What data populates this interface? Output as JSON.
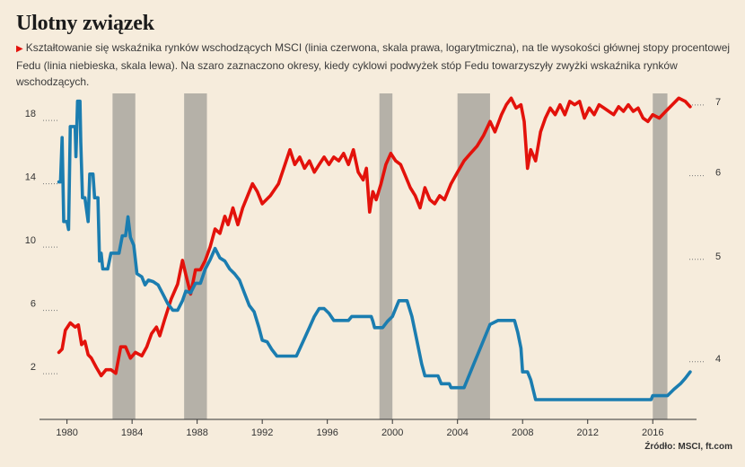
{
  "title": "Ulotny związek",
  "subtitle": "Kształtowanie się wskaźnika rynków wschodzących MSCI (linia czerwona,  skala prawa, logarytmiczna), na tle wysokości głównej stopy procentowej Fedu (linia niebieska, skala lewa). Na szaro zaznaczono okresy, kiedy cyklowi podwyżek stóp Fedu towarzyszyły zwyżki wskaźnika rynków wschodzących.",
  "source": "Źródło: MSCI, ft.com",
  "colors": {
    "background": "#f6ecdc",
    "msci": "#e3120b",
    "fed": "#1b7db0",
    "shading": "#b5b1a8"
  },
  "chart_data": {
    "type": "line",
    "title": "Ulotny związek",
    "x_ticks": [
      1980,
      1984,
      1988,
      1992,
      1996,
      2000,
      2004,
      2008,
      2012,
      2016
    ],
    "x_range": [
      1978.2,
      2018.8
    ],
    "left_axis": {
      "ticks": [
        2,
        6,
        10,
        14,
        18
      ],
      "range": [
        -1,
        20.5
      ]
    },
    "right_axis": {
      "ticks": [
        4,
        5,
        6,
        7
      ],
      "range": [
        3.5,
        7.35
      ],
      "scale": "log"
    },
    "shaded_periods": [
      [
        1982.8,
        1984.2
      ],
      [
        1987.2,
        1988.6
      ],
      [
        1999.2,
        2000.0
      ],
      [
        2004.0,
        2006.0
      ],
      [
        2016.0,
        2016.9
      ]
    ],
    "series": [
      {
        "axis": "right",
        "color": "#e3120b",
        "points": [
          [
            1979.5,
            4.05
          ],
          [
            1979.7,
            4.08
          ],
          [
            1979.9,
            4.25
          ],
          [
            1980.2,
            4.32
          ],
          [
            1980.5,
            4.28
          ],
          [
            1980.7,
            4.3
          ],
          [
            1980.9,
            4.12
          ],
          [
            1981.1,
            4.15
          ],
          [
            1981.3,
            4.03
          ],
          [
            1981.5,
            4.0
          ],
          [
            1981.8,
            3.92
          ],
          [
            1982.1,
            3.85
          ],
          [
            1982.4,
            3.9
          ],
          [
            1982.7,
            3.9
          ],
          [
            1983.0,
            3.87
          ],
          [
            1983.3,
            4.1
          ],
          [
            1983.6,
            4.1
          ],
          [
            1983.9,
            4.0
          ],
          [
            1984.2,
            4.05
          ],
          [
            1984.6,
            4.02
          ],
          [
            1984.9,
            4.1
          ],
          [
            1985.2,
            4.22
          ],
          [
            1985.5,
            4.28
          ],
          [
            1985.7,
            4.2
          ],
          [
            1986.0,
            4.35
          ],
          [
            1986.4,
            4.55
          ],
          [
            1986.8,
            4.7
          ],
          [
            1987.1,
            4.95
          ],
          [
            1987.3,
            4.8
          ],
          [
            1987.6,
            4.6
          ],
          [
            1987.9,
            4.85
          ],
          [
            1988.2,
            4.85
          ],
          [
            1988.5,
            4.95
          ],
          [
            1988.8,
            5.1
          ],
          [
            1989.1,
            5.3
          ],
          [
            1989.4,
            5.25
          ],
          [
            1989.7,
            5.45
          ],
          [
            1989.9,
            5.35
          ],
          [
            1990.2,
            5.55
          ],
          [
            1990.5,
            5.35
          ],
          [
            1990.8,
            5.55
          ],
          [
            1991.1,
            5.7
          ],
          [
            1991.4,
            5.85
          ],
          [
            1991.7,
            5.75
          ],
          [
            1992.0,
            5.6
          ],
          [
            1992.5,
            5.7
          ],
          [
            1993.0,
            5.85
          ],
          [
            1993.4,
            6.1
          ],
          [
            1993.7,
            6.3
          ],
          [
            1994.0,
            6.1
          ],
          [
            1994.3,
            6.2
          ],
          [
            1994.6,
            6.05
          ],
          [
            1994.9,
            6.15
          ],
          [
            1995.2,
            6.0
          ],
          [
            1995.5,
            6.1
          ],
          [
            1995.8,
            6.2
          ],
          [
            1996.1,
            6.1
          ],
          [
            1996.4,
            6.2
          ],
          [
            1996.7,
            6.15
          ],
          [
            1997.0,
            6.25
          ],
          [
            1997.3,
            6.1
          ],
          [
            1997.6,
            6.3
          ],
          [
            1997.9,
            6.0
          ],
          [
            1998.2,
            5.9
          ],
          [
            1998.4,
            6.05
          ],
          [
            1998.6,
            5.5
          ],
          [
            1998.8,
            5.75
          ],
          [
            1999.0,
            5.65
          ],
          [
            1999.3,
            5.85
          ],
          [
            1999.6,
            6.1
          ],
          [
            1999.9,
            6.25
          ],
          [
            2000.2,
            6.15
          ],
          [
            2000.5,
            6.1
          ],
          [
            2000.8,
            5.95
          ],
          [
            2001.1,
            5.8
          ],
          [
            2001.4,
            5.7
          ],
          [
            2001.7,
            5.55
          ],
          [
            2002.0,
            5.8
          ],
          [
            2002.3,
            5.65
          ],
          [
            2002.6,
            5.6
          ],
          [
            2002.9,
            5.7
          ],
          [
            2003.2,
            5.65
          ],
          [
            2003.6,
            5.85
          ],
          [
            2004.0,
            6.0
          ],
          [
            2004.4,
            6.15
          ],
          [
            2004.8,
            6.25
          ],
          [
            2005.2,
            6.35
          ],
          [
            2005.6,
            6.5
          ],
          [
            2006.0,
            6.7
          ],
          [
            2006.3,
            6.55
          ],
          [
            2006.7,
            6.8
          ],
          [
            2007.0,
            6.95
          ],
          [
            2007.3,
            7.05
          ],
          [
            2007.6,
            6.9
          ],
          [
            2007.9,
            6.95
          ],
          [
            2008.1,
            6.7
          ],
          [
            2008.3,
            6.05
          ],
          [
            2008.5,
            6.3
          ],
          [
            2008.8,
            6.15
          ],
          [
            2009.1,
            6.55
          ],
          [
            2009.4,
            6.75
          ],
          [
            2009.7,
            6.9
          ],
          [
            2010.0,
            6.8
          ],
          [
            2010.3,
            6.95
          ],
          [
            2010.6,
            6.8
          ],
          [
            2010.9,
            7.0
          ],
          [
            2011.2,
            6.95
          ],
          [
            2011.5,
            7.0
          ],
          [
            2011.8,
            6.75
          ],
          [
            2012.1,
            6.9
          ],
          [
            2012.4,
            6.8
          ],
          [
            2012.7,
            6.95
          ],
          [
            2013.0,
            6.9
          ],
          [
            2013.3,
            6.85
          ],
          [
            2013.6,
            6.8
          ],
          [
            2013.9,
            6.92
          ],
          [
            2014.2,
            6.85
          ],
          [
            2014.5,
            6.95
          ],
          [
            2014.8,
            6.85
          ],
          [
            2015.1,
            6.9
          ],
          [
            2015.4,
            6.75
          ],
          [
            2015.7,
            6.7
          ],
          [
            2016.0,
            6.8
          ],
          [
            2016.4,
            6.75
          ],
          [
            2016.8,
            6.85
          ],
          [
            2017.2,
            6.95
          ],
          [
            2017.6,
            7.05
          ],
          [
            2018.0,
            7.0
          ],
          [
            2018.3,
            6.92
          ]
        ]
      },
      {
        "axis": "left",
        "color": "#1b7db0",
        "points": [
          [
            1979.5,
            14.0
          ],
          [
            1979.6,
            14.0
          ],
          [
            1979.7,
            16.8
          ],
          [
            1979.8,
            11.5
          ],
          [
            1980.0,
            11.5
          ],
          [
            1980.1,
            11.0
          ],
          [
            1980.2,
            17.5
          ],
          [
            1980.5,
            17.5
          ],
          [
            1980.55,
            15.6
          ],
          [
            1980.65,
            19.1
          ],
          [
            1980.8,
            19.1
          ],
          [
            1980.85,
            16.5
          ],
          [
            1980.95,
            13.0
          ],
          [
            1981.1,
            13.0
          ],
          [
            1981.3,
            11.5
          ],
          [
            1981.4,
            14.5
          ],
          [
            1981.6,
            14.5
          ],
          [
            1981.7,
            13.0
          ],
          [
            1981.9,
            13.0
          ],
          [
            1982.0,
            9.0
          ],
          [
            1982.1,
            9.5
          ],
          [
            1982.2,
            8.5
          ],
          [
            1982.5,
            8.5
          ],
          [
            1982.7,
            9.5
          ],
          [
            1983.2,
            9.5
          ],
          [
            1983.4,
            10.6
          ],
          [
            1983.6,
            10.6
          ],
          [
            1983.75,
            11.8
          ],
          [
            1983.9,
            10.5
          ],
          [
            1984.1,
            10.0
          ],
          [
            1984.3,
            8.2
          ],
          [
            1984.6,
            8.0
          ],
          [
            1984.8,
            7.5
          ],
          [
            1985.0,
            7.8
          ],
          [
            1985.3,
            7.7
          ],
          [
            1985.6,
            7.5
          ],
          [
            1985.9,
            6.9
          ],
          [
            1986.2,
            6.3
          ],
          [
            1986.5,
            5.9
          ],
          [
            1986.8,
            5.9
          ],
          [
            1987.1,
            6.5
          ],
          [
            1987.3,
            7.1
          ],
          [
            1987.6,
            7.0
          ],
          [
            1987.9,
            7.6
          ],
          [
            1988.2,
            7.6
          ],
          [
            1988.5,
            8.5
          ],
          [
            1988.8,
            9.1
          ],
          [
            1989.1,
            9.8
          ],
          [
            1989.4,
            9.2
          ],
          [
            1989.7,
            9.0
          ],
          [
            1990.0,
            8.5
          ],
          [
            1990.3,
            8.2
          ],
          [
            1990.6,
            7.8
          ],
          [
            1990.9,
            7.0
          ],
          [
            1991.2,
            6.2
          ],
          [
            1991.5,
            5.8
          ],
          [
            1991.8,
            4.8
          ],
          [
            1992.0,
            4.0
          ],
          [
            1992.3,
            3.9
          ],
          [
            1992.6,
            3.4
          ],
          [
            1992.9,
            3.0
          ],
          [
            1994.1,
            3.0
          ],
          [
            1994.5,
            3.9
          ],
          [
            1994.9,
            4.8
          ],
          [
            1995.2,
            5.5
          ],
          [
            1995.5,
            6.0
          ],
          [
            1995.8,
            6.0
          ],
          [
            1996.1,
            5.7
          ],
          [
            1996.4,
            5.25
          ],
          [
            1997.3,
            5.25
          ],
          [
            1997.5,
            5.5
          ],
          [
            1998.7,
            5.5
          ],
          [
            1998.8,
            5.2
          ],
          [
            1998.9,
            4.8
          ],
          [
            1999.4,
            4.8
          ],
          [
            1999.7,
            5.2
          ],
          [
            2000.0,
            5.5
          ],
          [
            2000.2,
            6.0
          ],
          [
            2000.4,
            6.5
          ],
          [
            2000.9,
            6.5
          ],
          [
            2001.2,
            5.5
          ],
          [
            2001.5,
            4.0
          ],
          [
            2001.8,
            2.5
          ],
          [
            2002.0,
            1.75
          ],
          [
            2002.8,
            1.75
          ],
          [
            2003.0,
            1.25
          ],
          [
            2003.5,
            1.25
          ],
          [
            2003.6,
            1.0
          ],
          [
            2004.4,
            1.0
          ],
          [
            2004.6,
            1.5
          ],
          [
            2005.0,
            2.5
          ],
          [
            2005.5,
            3.75
          ],
          [
            2006.0,
            5.0
          ],
          [
            2006.5,
            5.25
          ],
          [
            2007.5,
            5.25
          ],
          [
            2007.7,
            4.5
          ],
          [
            2007.9,
            3.5
          ],
          [
            2008.0,
            2.0
          ],
          [
            2008.3,
            2.0
          ],
          [
            2008.5,
            1.5
          ],
          [
            2008.8,
            0.25
          ],
          [
            2015.9,
            0.25
          ],
          [
            2016.0,
            0.5
          ],
          [
            2016.9,
            0.5
          ],
          [
            2017.3,
            0.9
          ],
          [
            2017.7,
            1.25
          ],
          [
            2018.0,
            1.6
          ],
          [
            2018.3,
            2.0
          ]
        ]
      }
    ]
  }
}
